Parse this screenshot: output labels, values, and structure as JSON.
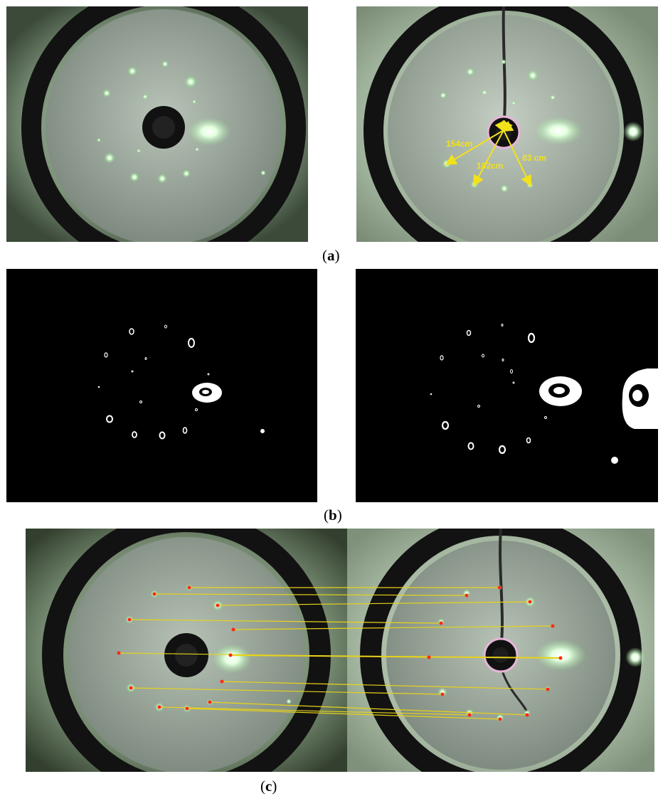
{
  "captions": {
    "a": {
      "open": "(",
      "letter": "a",
      "close": ")"
    },
    "b": {
      "open": "(",
      "letter": "b",
      "close": ")"
    },
    "c": {
      "open": "(",
      "letter": "c",
      "close": ")"
    }
  },
  "measurements": {
    "label_154": "154cm",
    "label_102": "102cm",
    "label_83": "83 cm"
  },
  "colors": {
    "screen_green": "#8fa48c",
    "laser_spot": "#c8ffc8",
    "ring_black": "#0a0a0a",
    "match_line": "#e8d21a",
    "match_point": "#ff2a10"
  }
}
